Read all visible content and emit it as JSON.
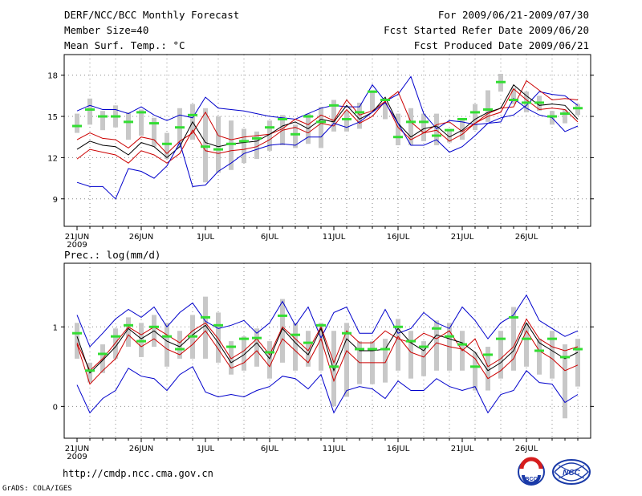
{
  "header": {
    "title": "DERF/NCC/BCC Monthly Forecast",
    "member": "Member Size=40",
    "variable_top": "Mean Surf. Temp.: °C",
    "period": "For 2009/06/21-2009/07/30",
    "started": "Fcst Started Refer Date 2009/06/20",
    "produced": "Fcst Produced Date 2009/06/21"
  },
  "footer": {
    "url": "http://cmdp.ncc.cma.gov.cn",
    "grads": "GrADS: COLA/IGES",
    "logo1_text": "BCC",
    "logo2_text": "NCC"
  },
  "colors": {
    "mean": "#000000",
    "spread": "#cc0000",
    "extremes": "#0000cc",
    "bars": "#c8c8c8",
    "obs": "#33dd33"
  },
  "chart_data": [
    {
      "type": "line",
      "title": "Mean Surf. Temp.: °C",
      "x_ticks": [
        "21JUN",
        "26JUN",
        "1JUL",
        "6JUL",
        "11JUL",
        "16JUL",
        "21JUL",
        "26JUL"
      ],
      "x_year": "2009",
      "ylim": [
        7,
        19.5
      ],
      "y_ticks": [
        "9",
        "12",
        "15",
        "18"
      ],
      "y_tick_values": [
        9,
        12,
        15,
        18
      ],
      "days": 40,
      "series": [
        {
          "name": "ensemble max",
          "values": [
            15.4,
            15.8,
            15.5,
            15.5,
            15.2,
            15.7,
            15.1,
            14.7,
            15.1,
            14.9,
            16.4,
            15.6,
            15.5,
            15.4,
            15.2,
            15.0,
            14.9,
            14.8,
            15.2,
            15.6,
            15.8,
            15.7,
            15.7,
            17.3,
            16.1,
            16.6,
            17.9,
            15.2,
            14.1,
            14.7,
            14.6,
            14.4,
            14.5,
            14.9,
            15.1,
            15.8,
            16.8,
            16.6,
            16.5,
            15.8
          ]
        },
        {
          "name": "upper spread",
          "values": [
            13.3,
            13.8,
            13.4,
            13.3,
            12.7,
            13.5,
            13.3,
            12.3,
            13.2,
            13.8,
            15.3,
            13.6,
            13.3,
            13.5,
            13.6,
            13.7,
            14.1,
            14.8,
            14.4,
            15.1,
            14.7,
            16.2,
            15.1,
            15.4,
            16.1,
            16.8,
            14.6,
            13.8,
            14.4,
            14.6,
            13.9,
            14.5,
            15.2,
            15.6,
            15.7,
            17.6,
            16.9,
            16.2,
            16.3,
            16.2
          ]
        },
        {
          "name": "ensemble mean",
          "values": [
            12.6,
            13.2,
            12.9,
            12.8,
            12.2,
            13.1,
            12.8,
            12.0,
            12.8,
            14.6,
            13.1,
            12.8,
            13.0,
            13.1,
            13.2,
            13.7,
            14.3,
            14.6,
            14.1,
            14.8,
            14.6,
            15.8,
            14.8,
            15.3,
            16.4,
            14.5,
            13.5,
            14.1,
            14.3,
            13.5,
            14.0,
            14.8,
            15.3,
            15.6,
            17.3,
            16.5,
            15.8,
            15.9,
            15.8,
            14.8
          ]
        },
        {
          "name": "lower spread",
          "values": [
            11.9,
            12.6,
            12.4,
            12.2,
            11.6,
            12.5,
            12.2,
            11.6,
            12.3,
            14.0,
            12.5,
            12.3,
            12.5,
            12.6,
            12.8,
            13.3,
            14.0,
            14.2,
            13.8,
            14.5,
            14.3,
            15.5,
            14.5,
            15.0,
            16.1,
            14.2,
            13.3,
            13.8,
            14.0,
            13.2,
            13.7,
            14.5,
            15.0,
            15.3,
            17.0,
            16.2,
            15.5,
            15.6,
            15.5,
            14.6
          ]
        },
        {
          "name": "ensemble min",
          "values": [
            10.2,
            9.9,
            9.9,
            9.0,
            11.2,
            11.0,
            10.5,
            11.4,
            13.1,
            9.9,
            10.0,
            11.0,
            11.6,
            12.3,
            12.6,
            12.9,
            13.0,
            12.9,
            13.5,
            13.5,
            14.5,
            14.2,
            14.6,
            15.3,
            16.0,
            14.5,
            12.9,
            12.9,
            13.3,
            12.4,
            12.8,
            13.6,
            14.5,
            14.6,
            16.3,
            15.6,
            15.1,
            14.9,
            13.9,
            14.3
          ]
        },
        {
          "name": "observed",
          "values": [
            14.3,
            15.5,
            15.0,
            15.0,
            14.6,
            15.3,
            14.5,
            13.0,
            14.2,
            15.1,
            12.8,
            12.6,
            13.0,
            13.2,
            13.4,
            14.2,
            14.8,
            13.7,
            15.0,
            14.6,
            15.8,
            14.8,
            15.3,
            16.8,
            16.2,
            13.5,
            14.6,
            14.6,
            13.6,
            14.0,
            14.8,
            15.3,
            15.5,
            17.5,
            16.2,
            16.0,
            16.0,
            15.0,
            15.2,
            15.6
          ]
        }
      ],
      "bars": {
        "top": [
          15.2,
          16.3,
          15.4,
          15.8,
          15.3,
          15.5,
          14.9,
          13.8,
          15.6,
          15.9,
          15.6,
          15.0,
          14.7,
          14.1,
          13.9,
          14.7,
          15.1,
          14.4,
          15.2,
          15.7,
          16.2,
          15.4,
          16.0,
          16.9,
          16.0,
          15.2,
          15.6,
          15.2,
          15.2,
          14.1,
          14.8,
          15.9,
          16.9,
          18.1,
          17.1,
          16.8,
          16.5,
          15.4,
          15.5,
          15.9
        ],
        "bottom": [
          13.8,
          14.4,
          14.0,
          14.2,
          13.3,
          13.6,
          12.8,
          11.9,
          12.7,
          13.3,
          10.2,
          10.9,
          11.1,
          11.6,
          11.9,
          12.5,
          12.9,
          12.7,
          13.0,
          12.7,
          13.9,
          13.9,
          14.1,
          15.4,
          14.8,
          12.9,
          12.9,
          13.2,
          12.9,
          13.1,
          13.3,
          14.0,
          14.6,
          16.8,
          15.9,
          15.3,
          15.4,
          14.4,
          14.5,
          15.1
        ]
      }
    },
    {
      "type": "line",
      "title": "Prec.: log(mm/d)",
      "x_ticks": [
        "21JUN",
        "26JUN",
        "1JUL",
        "6JUL",
        "11JUL",
        "16JUL",
        "21JUL",
        "26JUL"
      ],
      "x_year": "2009",
      "ylim": [
        -0.4,
        1.8
      ],
      "y_ticks": [
        "0",
        "1"
      ],
      "y_tick_values": [
        0,
        1
      ],
      "days": 40,
      "series": [
        {
          "name": "ensemble max",
          "values": [
            1.15,
            0.75,
            0.92,
            1.1,
            1.22,
            1.12,
            1.25,
            1.0,
            1.18,
            1.3,
            1.07,
            0.98,
            1.02,
            1.08,
            0.92,
            1.05,
            1.32,
            1.02,
            1.25,
            0.86,
            1.18,
            1.25,
            0.92,
            0.92,
            1.22,
            0.92,
            0.98,
            1.18,
            1.05,
            0.98,
            1.25,
            1.08,
            0.85,
            1.05,
            1.15,
            1.4,
            1.08,
            0.98,
            0.88,
            0.95
          ]
        },
        {
          "name": "upper spread",
          "values": [
            0.8,
            0.45,
            0.6,
            0.8,
            1.0,
            0.9,
            1.0,
            0.9,
            0.8,
            0.95,
            1.05,
            0.85,
            0.6,
            0.7,
            0.85,
            0.65,
            1.0,
            0.85,
            0.7,
            1.0,
            0.55,
            0.95,
            0.8,
            0.8,
            0.95,
            0.85,
            0.8,
            0.92,
            0.85,
            0.95,
            0.7,
            0.85,
            0.5,
            0.6,
            0.75,
            1.1,
            0.85,
            0.75,
            0.7,
            0.75
          ]
        },
        {
          "name": "ensemble mean",
          "values": [
            0.88,
            0.42,
            0.58,
            0.75,
            0.98,
            0.85,
            0.95,
            0.82,
            0.75,
            0.9,
            1.02,
            0.8,
            0.55,
            0.65,
            0.8,
            0.6,
            0.98,
            0.8,
            0.65,
            0.98,
            0.45,
            0.85,
            0.7,
            0.7,
            0.72,
            0.98,
            0.8,
            0.7,
            0.9,
            0.85,
            0.8,
            0.68,
            0.45,
            0.55,
            0.7,
            1.05,
            0.8,
            0.7,
            0.6,
            0.68
          ]
        },
        {
          "name": "lower spread",
          "values": [
            0.78,
            0.28,
            0.45,
            0.6,
            0.9,
            0.75,
            0.85,
            0.72,
            0.65,
            0.78,
            0.95,
            0.72,
            0.48,
            0.55,
            0.7,
            0.5,
            0.85,
            0.7,
            0.55,
            0.85,
            0.32,
            0.7,
            0.55,
            0.55,
            0.55,
            0.88,
            0.68,
            0.62,
            0.8,
            0.75,
            0.72,
            0.6,
            0.35,
            0.45,
            0.6,
            0.95,
            0.7,
            0.6,
            0.45,
            0.52
          ]
        },
        {
          "name": "ensemble min",
          "values": [
            0.27,
            -0.08,
            0.1,
            0.2,
            0.48,
            0.38,
            0.35,
            0.2,
            0.4,
            0.5,
            0.18,
            0.12,
            0.15,
            0.12,
            0.2,
            0.25,
            0.38,
            0.35,
            0.22,
            0.4,
            -0.08,
            0.2,
            0.25,
            0.22,
            0.1,
            0.32,
            0.2,
            0.2,
            0.35,
            0.25,
            0.2,
            0.25,
            -0.08,
            0.15,
            0.2,
            0.45,
            0.3,
            0.28,
            0.05,
            0.15
          ]
        },
        {
          "name": "observed",
          "values": [
            0.92,
            0.45,
            0.66,
            0.88,
            1.02,
            0.82,
            1.0,
            0.88,
            0.72,
            0.88,
            1.12,
            1.02,
            0.75,
            0.85,
            0.86,
            0.68,
            1.14,
            0.9,
            0.8,
            1.02,
            0.5,
            0.92,
            0.72,
            0.72,
            0.72,
            1.0,
            0.82,
            0.75,
            0.98,
            0.88,
            0.78,
            0.5,
            0.65,
            0.85,
            1.12,
            0.85,
            0.7,
            0.85,
            0.62,
            0.72
          ]
        }
      ],
      "bars": {
        "top": [
          1.05,
          0.55,
          0.78,
          0.98,
          1.12,
          1.05,
          1.15,
          1.05,
          0.95,
          1.15,
          1.38,
          1.18,
          0.82,
          0.88,
          0.98,
          0.82,
          1.35,
          1.05,
          0.95,
          1.05,
          0.95,
          1.05,
          0.82,
          0.82,
          0.85,
          1.1,
          0.95,
          0.82,
          1.08,
          1.05,
          0.95,
          0.68,
          0.75,
          0.95,
          1.25,
          1.05,
          0.85,
          0.95,
          0.78,
          0.85
        ],
        "bottom": [
          0.6,
          0.3,
          0.42,
          0.6,
          0.75,
          0.62,
          0.75,
          0.5,
          0.6,
          0.6,
          0.6,
          0.55,
          0.4,
          0.45,
          0.5,
          0.35,
          0.55,
          0.45,
          0.5,
          0.45,
          0.0,
          0.12,
          0.28,
          0.28,
          0.3,
          0.45,
          0.35,
          0.38,
          0.45,
          0.45,
          0.45,
          0.2,
          0.2,
          0.35,
          0.45,
          0.5,
          0.4,
          0.35,
          -0.15,
          0.25
        ]
      }
    }
  ]
}
